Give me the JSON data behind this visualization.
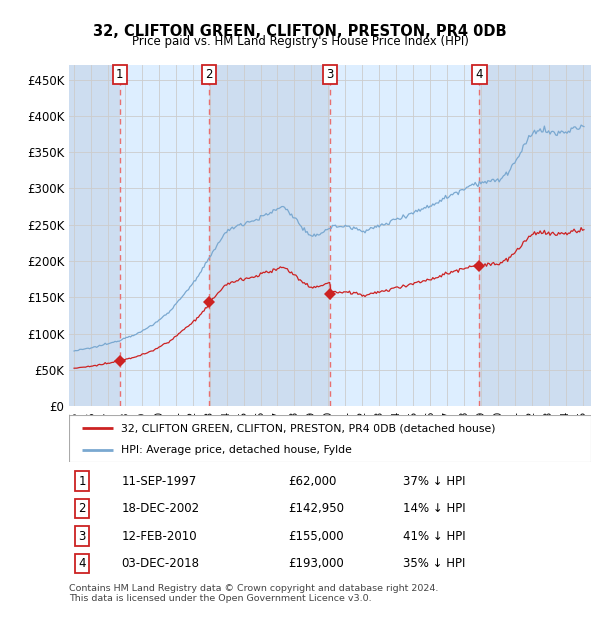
{
  "title": "32, CLIFTON GREEN, CLIFTON, PRESTON, PR4 0DB",
  "subtitle": "Price paid vs. HM Land Registry's House Price Index (HPI)",
  "ylabel_ticks": [
    "£0",
    "£50K",
    "£100K",
    "£150K",
    "£200K",
    "£250K",
    "£300K",
    "£350K",
    "£400K",
    "£450K"
  ],
  "ytick_values": [
    0,
    50000,
    100000,
    150000,
    200000,
    250000,
    300000,
    350000,
    400000,
    450000
  ],
  "ylim": [
    0,
    470000
  ],
  "sale_years": [
    1997.703,
    2002.958,
    2010.119,
    2018.919
  ],
  "sale_prices": [
    62000,
    142950,
    155000,
    193000
  ],
  "sale_labels": [
    "1",
    "2",
    "3",
    "4"
  ],
  "legend_line1": "32, CLIFTON GREEN, CLIFTON, PRESTON, PR4 0DB (detached house)",
  "legend_line2": "HPI: Average price, detached house, Fylde",
  "footer1": "Contains HM Land Registry data © Crown copyright and database right 2024.",
  "footer2": "This data is licensed under the Open Government Licence v3.0.",
  "hpi_color": "#7aa8d0",
  "sale_color": "#cc2222",
  "vline_color": "#e87070",
  "band_colors": [
    "#ddeeff",
    "#eef4ff"
  ],
  "grid_color": "#cccccc",
  "plot_bg": "#e8f0f8"
}
